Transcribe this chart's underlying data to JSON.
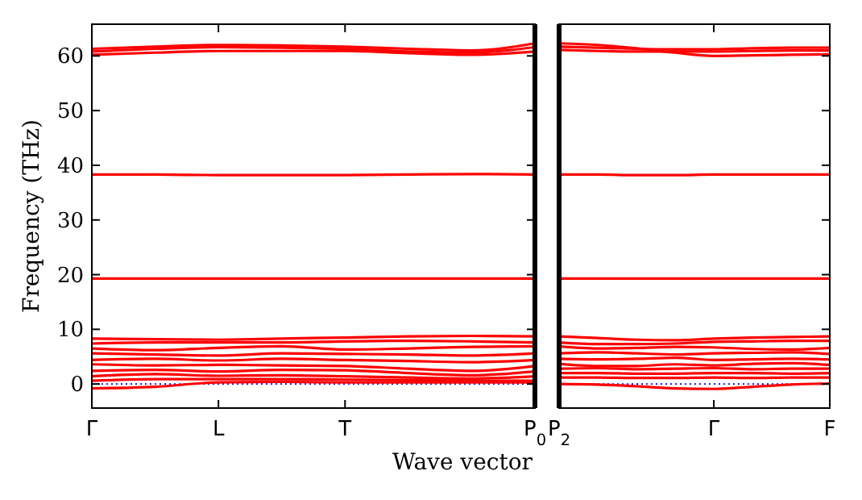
{
  "chart_data": [
    {
      "type": "line",
      "ylabel": "Frequency (THz)",
      "xlabel": "Wave vector",
      "ylim": [
        -4.4,
        65.8
      ],
      "categories": [
        "Γ",
        null,
        "L",
        null,
        "T",
        null,
        null,
        "P$_{0}$"
      ],
      "yticks": [
        0,
        10,
        20,
        30,
        40,
        50,
        60
      ],
      "grid": false,
      "marker": "none",
      "line_style": "solid",
      "ref_lines": [
        {
          "axis": "y",
          "value": 0,
          "color": "#0000ff",
          "line_style": "dotted"
        }
      ],
      "series": [
        {
          "color": "#ff0000",
          "values": [
            61.3,
            61.7,
            62,
            61.9,
            61.7,
            61.3,
            61.0,
            62.3
          ]
        },
        {
          "color": "#ff0000",
          "values": [
            60.8,
            61.3,
            61.6,
            61.5,
            61.3,
            60.8,
            60.6,
            61.6
          ]
        },
        {
          "color": "#ff0000",
          "values": [
            60.2,
            60.6,
            60.9,
            60.9,
            60.9,
            60.5,
            60.2,
            60.8
          ]
        },
        {
          "color": "#ff0000",
          "values": [
            38.3,
            38.3,
            38.2,
            38.2,
            38.2,
            38.3,
            38.4,
            38.3
          ]
        },
        {
          "color": "#ff0000",
          "values": [
            19.3,
            19.3,
            19.3,
            19.3,
            19.3,
            19.3,
            19.3,
            19.3
          ]
        },
        {
          "color": "#ff0000",
          "values": [
            8.3,
            8.2,
            8.1,
            8.3,
            8.5,
            8.7,
            8.8,
            8.7
          ]
        },
        {
          "color": "#ff0000",
          "values": [
            7.4,
            7.6,
            7.6,
            7.6,
            7.8,
            7.9,
            7.8,
            7.6
          ]
        },
        {
          "color": "#ff0000",
          "values": [
            6.5,
            6.2,
            6.6,
            6.9,
            6.3,
            6.5,
            6.8,
            6.9
          ]
        },
        {
          "color": "#ff0000",
          "values": [
            5.6,
            5.4,
            5.2,
            5.6,
            5.5,
            5.4,
            5.2,
            5.6
          ]
        },
        {
          "color": "#ff0000",
          "values": [
            4.4,
            4.6,
            4.3,
            4.6,
            4.4,
            4.2,
            4.0,
            4.4
          ]
        },
        {
          "color": "#ff0000",
          "values": [
            3.6,
            3.4,
            3.5,
            3.4,
            3.3,
            2.8,
            2.4,
            3.3
          ]
        },
        {
          "color": "#ff0000",
          "values": [
            2.4,
            2.6,
            2.3,
            2.6,
            2.5,
            2.0,
            1.6,
            2.3
          ]
        },
        {
          "color": "#ff0000",
          "values": [
            1.4,
            1.8,
            1.5,
            1.6,
            1.4,
            1.2,
            1.0,
            1.4
          ]
        },
        {
          "color": "#ff0000",
          "values": [
            0.6,
            0.9,
            0.9,
            0.9,
            0.8,
            0.7,
            0.6,
            0.6
          ]
        },
        {
          "color": "#ff0000",
          "values": [
            -0.8,
            -0.5,
            0.3,
            0.4,
            0.3,
            0.3,
            0.3,
            0.3
          ]
        }
      ]
    },
    {
      "type": "line",
      "ylim": [
        -4.4,
        65.8
      ],
      "categories": [
        "P$_{2}$",
        null,
        null,
        null,
        "Γ",
        null,
        null,
        "F"
      ],
      "yticks": [
        0,
        10,
        20,
        30,
        40,
        50,
        60
      ],
      "tick_labels": "x",
      "grid": false,
      "marker": "none",
      "line_style": "solid",
      "ref_lines": [
        {
          "axis": "y",
          "value": 0,
          "color": "#0000ff",
          "line_style": "dotted"
        }
      ],
      "series": [
        {
          "color": "#ff0000",
          "values": [
            62.3,
            62.0,
            61.4,
            60.6,
            60.0,
            60.1,
            60.2,
            60.3
          ]
        },
        {
          "color": "#ff0000",
          "values": [
            61.7,
            61.5,
            61.3,
            61.2,
            61.2,
            61.4,
            61.5,
            61.5
          ]
        },
        {
          "color": "#ff0000",
          "values": [
            61.1,
            60.9,
            60.8,
            60.8,
            60.8,
            60.9,
            61.0,
            61.0
          ]
        },
        {
          "color": "#ff0000",
          "values": [
            38.3,
            38.3,
            38.2,
            38.2,
            38.3,
            38.3,
            38.3,
            38.3
          ]
        },
        {
          "color": "#ff0000",
          "values": [
            19.3,
            19.3,
            19.3,
            19.3,
            19.3,
            19.3,
            19.3,
            19.3
          ]
        },
        {
          "color": "#ff0000",
          "values": [
            8.7,
            8.4,
            8.1,
            8.0,
            8.3,
            8.5,
            8.6,
            8.7
          ]
        },
        {
          "color": "#ff0000",
          "values": [
            7.6,
            7.3,
            7.3,
            7.4,
            7.7,
            7.8,
            7.9,
            7.9
          ]
        },
        {
          "color": "#ff0000",
          "values": [
            6.9,
            6.5,
            6.6,
            6.8,
            6.7,
            6.4,
            6.3,
            6.6
          ]
        },
        {
          "color": "#ff0000",
          "values": [
            5.6,
            5.8,
            5.6,
            5.4,
            5.6,
            5.7,
            5.8,
            5.5
          ]
        },
        {
          "color": "#ff0000",
          "values": [
            4.6,
            4.5,
            4.6,
            4.8,
            4.4,
            4.5,
            4.6,
            4.5
          ]
        },
        {
          "color": "#ff0000",
          "values": [
            3.7,
            3.3,
            3.3,
            3.6,
            3.4,
            3.7,
            3.8,
            3.5
          ]
        },
        {
          "color": "#ff0000",
          "values": [
            2.8,
            2.9,
            2.7,
            2.8,
            2.9,
            2.7,
            2.8,
            2.8
          ]
        },
        {
          "color": "#ff0000",
          "values": [
            2.0,
            2.0,
            1.9,
            1.9,
            2.0,
            2.0,
            1.9,
            2.0
          ]
        },
        {
          "color": "#ff0000",
          "values": [
            1.2,
            1.2,
            1.1,
            1.1,
            1.2,
            1.1,
            1.2,
            1.2
          ]
        },
        {
          "color": "#ff0000",
          "values": [
            0.0,
            -0.1,
            -0.4,
            -0.8,
            -0.9,
            -0.5,
            -0.1,
            0.1
          ]
        }
      ]
    }
  ]
}
